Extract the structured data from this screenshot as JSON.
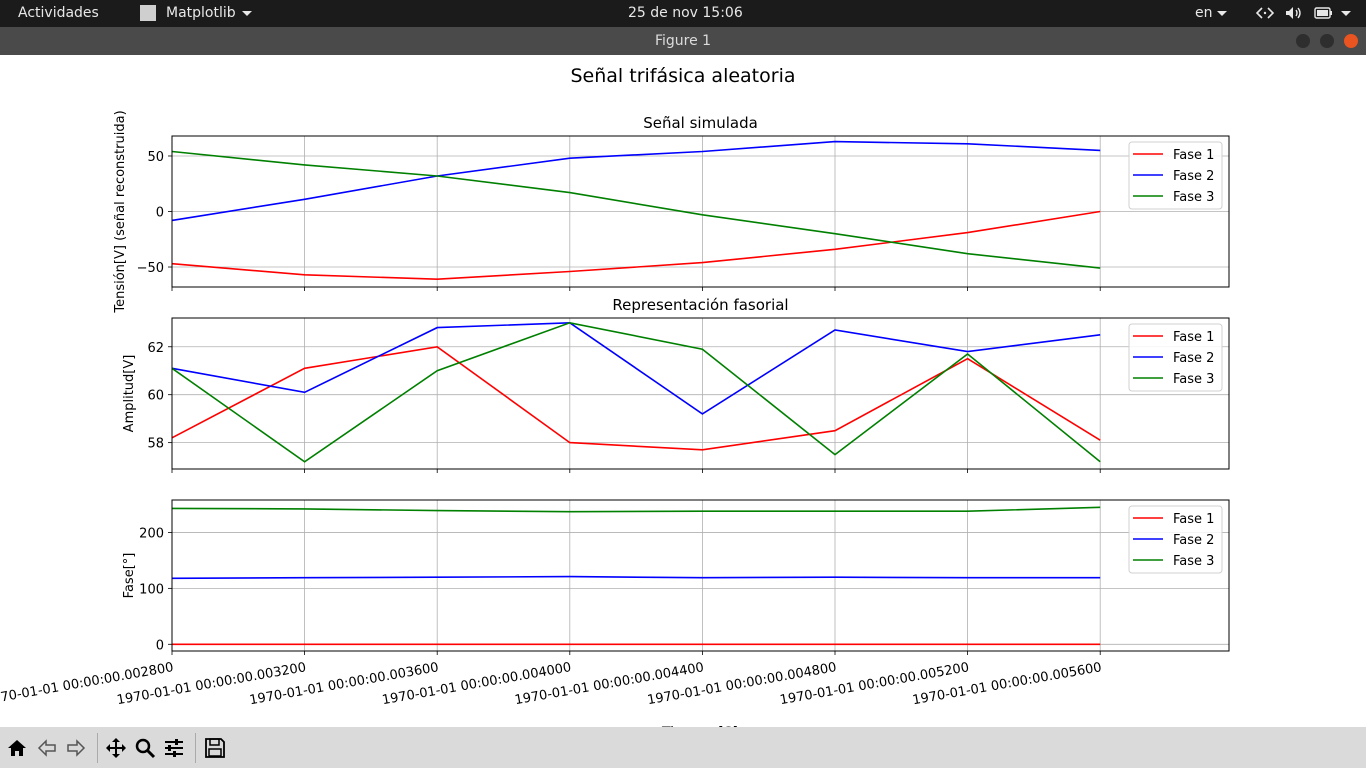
{
  "topbar": {
    "activities": "Actividades",
    "app_name": "Matplotlib",
    "clock": "25 de nov  15:06",
    "lang": "en",
    "accent": "#1b1b1b"
  },
  "window": {
    "title": "Figure 1",
    "close_color": "#e95420"
  },
  "figure": {
    "suptitle": "Señal trifásica aleatoria",
    "xlabel_partial": "Tiempo [S]"
  },
  "chart_data": [
    {
      "type": "line",
      "title": "Señal simulada",
      "ylabel": "Tensión[V] (señal reconstruida)",
      "xlim": [
        "1970-01-01 00:00:00.002800",
        "1970-01-01 00:00:00.005600"
      ],
      "ylim": [
        -68,
        68
      ],
      "yticks": [
        -50,
        0,
        50
      ],
      "x": [
        "1970-01-01 00:00:00.002800",
        "1970-01-01 00:00:00.003200",
        "1970-01-01 00:00:00.003600",
        "1970-01-01 00:00:00.004000",
        "1970-01-01 00:00:00.004400",
        "1970-01-01 00:00:00.004800",
        "1970-01-01 00:00:00.005200",
        "1970-01-01 00:00:00.005600"
      ],
      "grid": true,
      "legend": "top-right",
      "series": [
        {
          "name": "Fase 1",
          "color": "#ff0000",
          "values": [
            -47,
            -57,
            -61,
            -54,
            -46,
            -34,
            -19,
            0
          ]
        },
        {
          "name": "Fase 2",
          "color": "#0000ff",
          "values": [
            -8,
            11,
            32,
            48,
            54,
            63,
            61,
            55
          ]
        },
        {
          "name": "Fase 3",
          "color": "#008000",
          "values": [
            54,
            42,
            32,
            17,
            -3,
            -20,
            -38,
            -51
          ]
        }
      ]
    },
    {
      "type": "line",
      "title": "Representación fasorial",
      "ylabel": "Amplitud[V]",
      "ylim": [
        56.9,
        63.2
      ],
      "yticks": [
        58,
        60,
        62
      ],
      "x": [
        "1970-01-01 00:00:00.002800",
        "1970-01-01 00:00:00.003200",
        "1970-01-01 00:00:00.003600",
        "1970-01-01 00:00:00.004000",
        "1970-01-01 00:00:00.004400",
        "1970-01-01 00:00:00.004800",
        "1970-01-01 00:00:00.005200",
        "1970-01-01 00:00:00.005600"
      ],
      "grid": true,
      "legend": "top-right",
      "series": [
        {
          "name": "Fase 1",
          "color": "#ff0000",
          "values": [
            58.2,
            61.1,
            62.0,
            58.0,
            57.7,
            58.5,
            61.5,
            58.1
          ]
        },
        {
          "name": "Fase 2",
          "color": "#0000ff",
          "values": [
            61.1,
            60.1,
            62.8,
            63.0,
            59.2,
            62.7,
            61.8,
            62.5
          ]
        },
        {
          "name": "Fase 3",
          "color": "#008000",
          "values": [
            61.1,
            57.2,
            61.0,
            63.0,
            61.9,
            57.5,
            61.7,
            57.2
          ]
        }
      ]
    },
    {
      "type": "line",
      "title": "",
      "ylabel": "Fase[°]",
      "ylim": [
        -12,
        258
      ],
      "yticks": [
        0,
        100,
        200
      ],
      "x": [
        "1970-01-01 00:00:00.002800",
        "1970-01-01 00:00:00.003200",
        "1970-01-01 00:00:00.003600",
        "1970-01-01 00:00:00.004000",
        "1970-01-01 00:00:00.004400",
        "1970-01-01 00:00:00.004800",
        "1970-01-01 00:00:00.005200",
        "1970-01-01 00:00:00.005600"
      ],
      "xticklabels": [
        "1970-01-01 00:00:00.002800",
        "1970-01-01 00:00:00.003200",
        "1970-01-01 00:00:00.003600",
        "1970-01-01 00:00:00.004000",
        "1970-01-01 00:00:00.004400",
        "1970-01-01 00:00:00.004800",
        "1970-01-01 00:00:00.005200",
        "1970-01-01 00:00:00.005600"
      ],
      "grid": true,
      "legend": "top-right",
      "series": [
        {
          "name": "Fase 1",
          "color": "#ff0000",
          "values": [
            0,
            0,
            0,
            0,
            0,
            0,
            0,
            0
          ]
        },
        {
          "name": "Fase 2",
          "color": "#0000ff",
          "values": [
            118,
            119,
            120,
            121,
            119,
            120,
            119,
            119
          ]
        },
        {
          "name": "Fase 3",
          "color": "#008000",
          "values": [
            243,
            242,
            239,
            237,
            238,
            238,
            238,
            245
          ]
        }
      ]
    }
  ],
  "toolbar": {
    "items": [
      {
        "name": "home-icon"
      },
      {
        "name": "back-arrow-icon"
      },
      {
        "name": "forward-arrow-icon"
      },
      {
        "name": "pan-move-icon"
      },
      {
        "name": "zoom-magnifier-icon"
      },
      {
        "name": "subplots-config-icon"
      },
      {
        "name": "save-floppy-icon"
      }
    ]
  }
}
